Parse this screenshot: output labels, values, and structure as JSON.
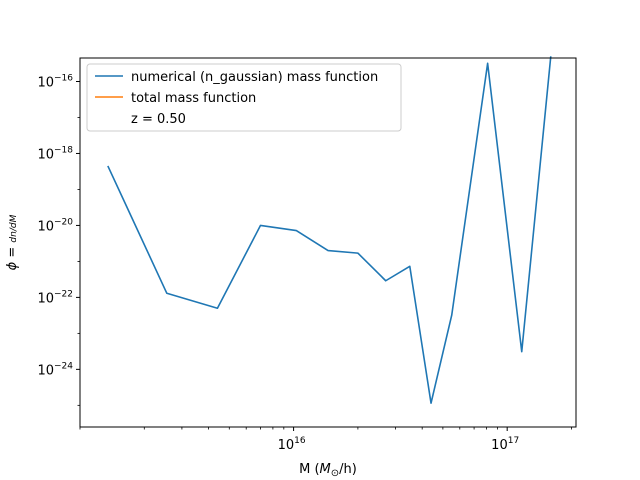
{
  "chart_data": {
    "type": "line",
    "title": "",
    "xlabel": "M ($M_\\odot$/h)",
    "ylabel": "$\\phi = \\frac{dn}{dM}$",
    "xscale": "log",
    "yscale": "log",
    "xlim": [
      1000000000000000.0,
      2.1e+17
    ],
    "ylim": [
      2.5e-26,
      4.5e-16
    ],
    "grid": false,
    "legend": "upper-left",
    "x_ticks": [
      {
        "value": 1e+16,
        "mantissa": "10",
        "exp": "16"
      },
      {
        "value": 1e+17,
        "mantissa": "10",
        "exp": "17"
      }
    ],
    "y_ticks": [
      {
        "value": 1e-24,
        "mantissa": "10",
        "exp": "−24"
      },
      {
        "value": 1e-22,
        "mantissa": "10",
        "exp": "−22"
      },
      {
        "value": 1e-20,
        "mantissa": "10",
        "exp": "−20"
      },
      {
        "value": 1e-18,
        "mantissa": "10",
        "exp": "−18"
      },
      {
        "value": 1e-16,
        "mantissa": "10",
        "exp": "−16"
      }
    ],
    "series": [
      {
        "name": "numerical (n_gaussian) mass function",
        "color": "#1f77b4",
        "x": [
          1350000000000000.0,
          2550000000000000.0,
          4400000000000000.0,
          7000000000000000.0,
          1.03e+16,
          1.45e+16,
          2e+16,
          2.7e+16,
          3.5e+16,
          4.4e+16,
          5.5e+16,
          8.1e+16,
          1.17e+17,
          1.6e+17
        ],
        "y": [
          4.5e-19,
          1.3e-22,
          5e-23,
          1e-20,
          7.2e-21,
          2e-21,
          1.7e-21,
          2.9e-22,
          7.3e-22,
          1.15e-25,
          3.2e-23,
          3.2e-16,
          3.1e-24,
          5e-16
        ]
      },
      {
        "name": "total mass function",
        "color": "#ff7f0e",
        "x": [],
        "y": []
      }
    ],
    "legend_entries": [
      {
        "label": "numerical (n_gaussian) mass function",
        "color": "#1f77b4"
      },
      {
        "label": "total mass function",
        "color": "#ff7f0e"
      },
      {
        "label": "z = 0.50",
        "color": ""
      }
    ]
  }
}
